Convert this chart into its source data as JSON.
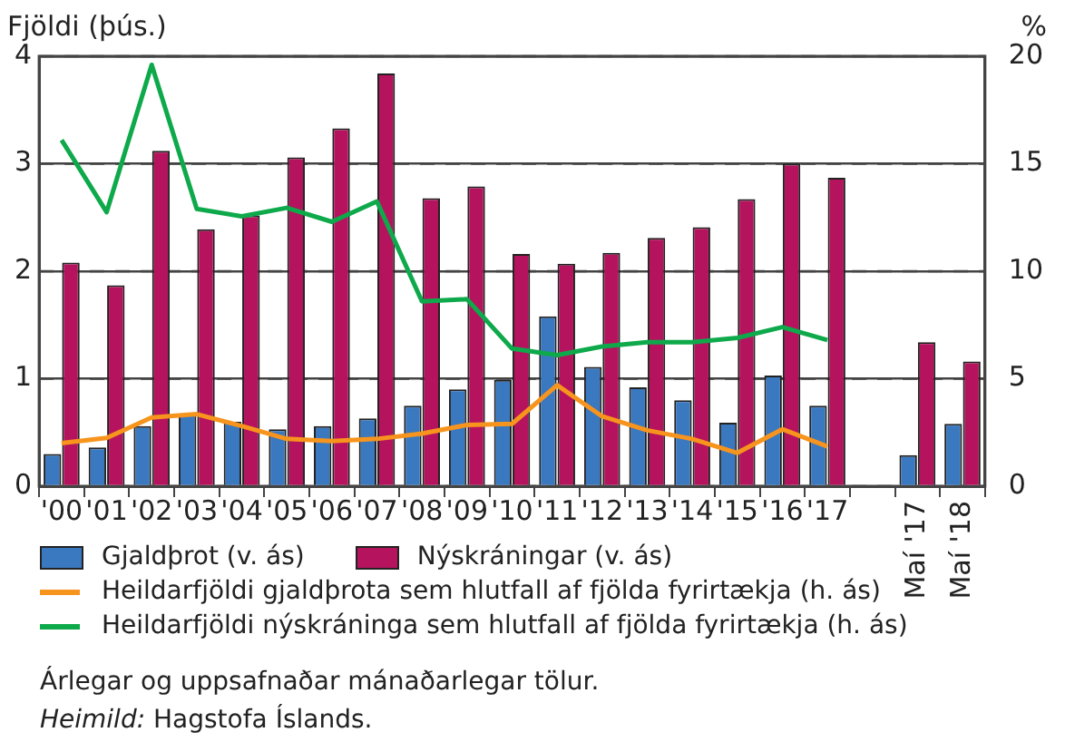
{
  "chart_data": {
    "type": "bar",
    "ylabel": "Fjöldi (þús.)",
    "y2label": "%",
    "categories": [
      "'00",
      "'01",
      "'02",
      "'03",
      "'04",
      "'05",
      "'06",
      "'07",
      "'08",
      "'09",
      "'10",
      "'11",
      "'12",
      "'13",
      "'14",
      "'15",
      "'16",
      "'17",
      null,
      "Maí '17",
      "Maí '18"
    ],
    "series": [
      {
        "name": "Gjaldþrot (v. ás)",
        "color": "#3a78c0",
        "values": [
          0.3,
          0.36,
          0.56,
          0.67,
          0.6,
          0.53,
          0.56,
          0.63,
          0.75,
          0.9,
          0.99,
          1.58,
          1.11,
          0.92,
          0.8,
          0.59,
          1.03,
          0.75,
          null,
          0.29,
          0.58
        ]
      },
      {
        "name": "Nýskráningar (v. ás)",
        "color": "#b5135d",
        "values": [
          2.08,
          1.87,
          3.12,
          2.39,
          2.52,
          3.06,
          3.33,
          3.84,
          2.68,
          2.79,
          2.16,
          2.07,
          2.17,
          2.31,
          2.41,
          2.67,
          3.0,
          2.87,
          null,
          1.34,
          1.16
        ]
      },
      {
        "name": "Heildarfjöldi gjaldþrota sem hlutfall af fjölda fyrirtækja (h. ás)",
        "type": "line",
        "axis": "y2",
        "color": "#f7941d",
        "values": [
          2.0,
          2.25,
          3.2,
          3.35,
          2.8,
          2.2,
          2.1,
          2.2,
          2.45,
          2.85,
          2.9,
          4.7,
          3.25,
          2.6,
          2.2,
          1.55,
          2.65,
          1.85,
          null,
          null,
          null
        ]
      },
      {
        "name": "Heildarfjöldi nýskráninga sem hlutfall af fjölda fyrirtækja (h. ás)",
        "type": "line",
        "axis": "y2",
        "color": "#0ea94b",
        "values": [
          16.1,
          12.75,
          19.6,
          12.9,
          12.55,
          12.95,
          12.3,
          13.25,
          8.6,
          8.7,
          6.4,
          6.1,
          6.5,
          6.7,
          6.7,
          6.9,
          7.4,
          6.8,
          null,
          null,
          null
        ]
      }
    ],
    "ylim": [
      0,
      4
    ],
    "yticks": [
      0,
      1,
      2,
      3,
      4
    ],
    "y2lim": [
      0,
      20
    ],
    "y2ticks": [
      0,
      5,
      10,
      15,
      20
    ],
    "grid": "y",
    "legend": "bottom",
    "marker": "none",
    "line_style": "solid",
    "annotations": [
      "Árlegar og uppsafnaðar mánaðarlegar tölur.",
      "Heimild: Hagstofa Íslands."
    ]
  }
}
